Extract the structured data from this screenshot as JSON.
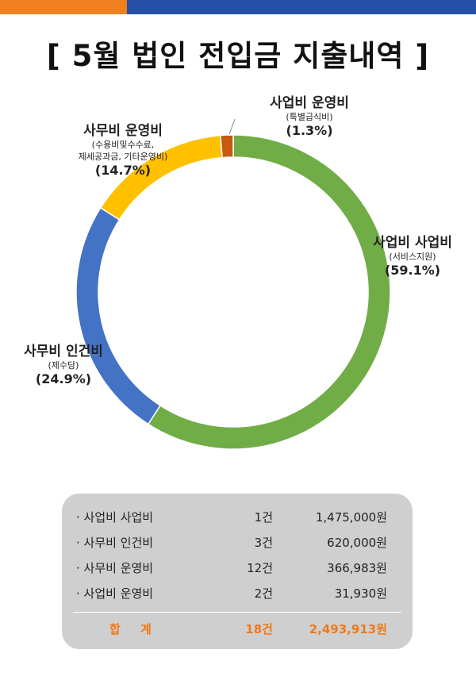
{
  "title": "[ 5월 법인 전입금 지출내역 ]",
  "chart_data": {
    "type": "donut",
    "slices": [
      {
        "name": "사업비 사업비",
        "sub": "(서비스지원)",
        "percent": 59.1,
        "percent_label": "(59.1%)",
        "color": "#70ad47"
      },
      {
        "name": "사무비 인건비",
        "sub": "(제수당)",
        "percent": 24.9,
        "percent_label": "(24.9%)",
        "color": "#4472c4"
      },
      {
        "name": "사무비 운영비",
        "sub": "(수용비및수수료,\n제세공과금, 기타운영비)",
        "percent": 14.7,
        "percent_label": "(14.7%)",
        "color": "#ffc000"
      },
      {
        "name": "사업비 운영비",
        "sub": "(특별급식비)",
        "percent": 1.3,
        "percent_label": "(1.3%)",
        "color": "#c55a11"
      }
    ]
  },
  "summary": {
    "rows": [
      {
        "name": "· 사업비 사업비",
        "count": "1건",
        "amount": "1,475,000원"
      },
      {
        "name": "· 사무비 인건비",
        "count": "3건",
        "amount": "620,000원"
      },
      {
        "name": "· 사무비 운영비",
        "count": "12건",
        "amount": "366,983원"
      },
      {
        "name": "· 사업비 운영비",
        "count": "2건",
        "amount": "31,930원"
      }
    ],
    "total": {
      "name": "합 계",
      "count": "18건",
      "amount": "2,493,913원"
    }
  }
}
